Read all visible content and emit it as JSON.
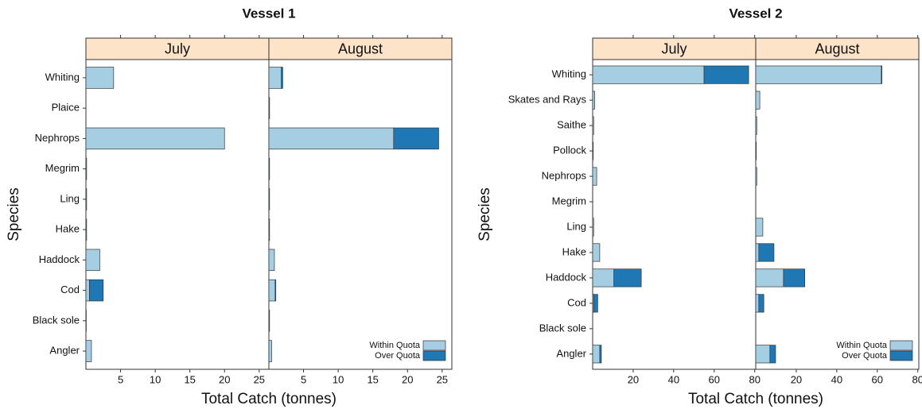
{
  "chart_data": [
    {
      "type": "bar",
      "stacked": true,
      "title": "Vessel 1",
      "xlabel": "Total Catch (tonnes)",
      "ylabel": "Species",
      "panels": [
        "July",
        "August"
      ],
      "categories": [
        "Whiting",
        "Plaice",
        "Nephrops",
        "Megrim",
        "Ling",
        "Hake",
        "Haddock",
        "Cod",
        "Black sole",
        "Angler"
      ],
      "series": [
        {
          "name": "Within Quota",
          "color": "#a6cee3",
          "values": [
            [
              4.0,
              0,
              20,
              0.1,
              0.1,
              0.1,
              2.0,
              0.5,
              0.05,
              0.8
            ],
            [
              1.8,
              0.1,
              18,
              0.1,
              0.1,
              0.1,
              0.8,
              0.9,
              0.1,
              0.4
            ]
          ]
        },
        {
          "name": "Over Quota",
          "color": "#1f78b4",
          "values": [
            [
              0,
              0,
              0,
              0,
              0,
              0,
              0,
              2.0,
              0,
              0
            ],
            [
              0.2,
              0,
              6.5,
              0,
              0,
              0,
              0,
              0.1,
              0,
              0
            ]
          ]
        }
      ],
      "xlim": [
        0,
        26.4
      ],
      "xticks": [
        5,
        10,
        15,
        20,
        25
      ],
      "legend": "bottom-right"
    },
    {
      "type": "bar",
      "stacked": true,
      "title": "Vessel 2",
      "xlabel": "Total Catch (tonnes)",
      "ylabel": "Species",
      "panels": [
        "July",
        "August"
      ],
      "categories": [
        "Whiting",
        "Skates and Rays",
        "Saithe",
        "Pollock",
        "Nephrops",
        "Megrim",
        "Ling",
        "Hake",
        "Haddock",
        "Cod",
        "Black sole",
        "Angler"
      ],
      "series": [
        {
          "name": "Within Quota",
          "color": "#a6cee3",
          "values": [
            [
              55,
              1,
              0.5,
              0.3,
              2,
              0,
              0.5,
              3.5,
              10.5,
              0.5,
              0,
              3.5
            ],
            [
              62,
              2,
              0.5,
              0.3,
              0.5,
              0,
              3.5,
              1.5,
              13.7,
              1.5,
              0,
              7
            ]
          ]
        },
        {
          "name": "Over Quota",
          "color": "#1f78b4",
          "values": [
            [
              22,
              0,
              0,
              0,
              0,
              0,
              0,
              0,
              13.5,
              2,
              0,
              0.8
            ],
            [
              0.3,
              0,
              0,
              0,
              0,
              0,
              0,
              7.5,
              10.5,
              2.5,
              0,
              2.8
            ]
          ]
        }
      ],
      "xlim": [
        0,
        80.5
      ],
      "xticks": [
        20,
        40,
        60,
        80
      ],
      "legend": "bottom-right"
    }
  ]
}
